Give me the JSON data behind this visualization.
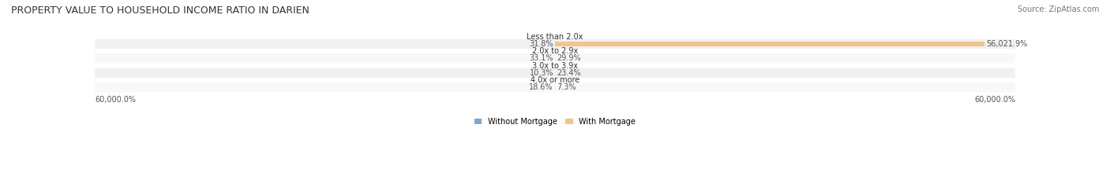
{
  "title": "PROPERTY VALUE TO HOUSEHOLD INCOME RATIO IN DARIEN",
  "source": "Source: ZipAtlas.com",
  "categories": [
    "Less than 2.0x",
    "2.0x to 2.9x",
    "3.0x to 3.9x",
    "4.0x or more"
  ],
  "without_mortgage": [
    31.8,
    33.1,
    10.3,
    18.6
  ],
  "with_mortgage": [
    56021.9,
    29.9,
    23.4,
    7.3
  ],
  "without_mortgage_color": "#7fa8d0",
  "with_mortgage_color": "#f5c48a",
  "bar_bg_color": "#e8e8e8",
  "row_bg_colors": [
    "#f0f0f0",
    "#f7f7f7"
  ],
  "axis_label_left": "60,000.0%",
  "axis_label_right": "60,000.0%",
  "legend_without": "Without Mortgage",
  "legend_with": "With Mortgage",
  "title_fontsize": 9,
  "source_fontsize": 7,
  "bar_label_fontsize": 7,
  "category_fontsize": 7,
  "axis_fontsize": 7
}
